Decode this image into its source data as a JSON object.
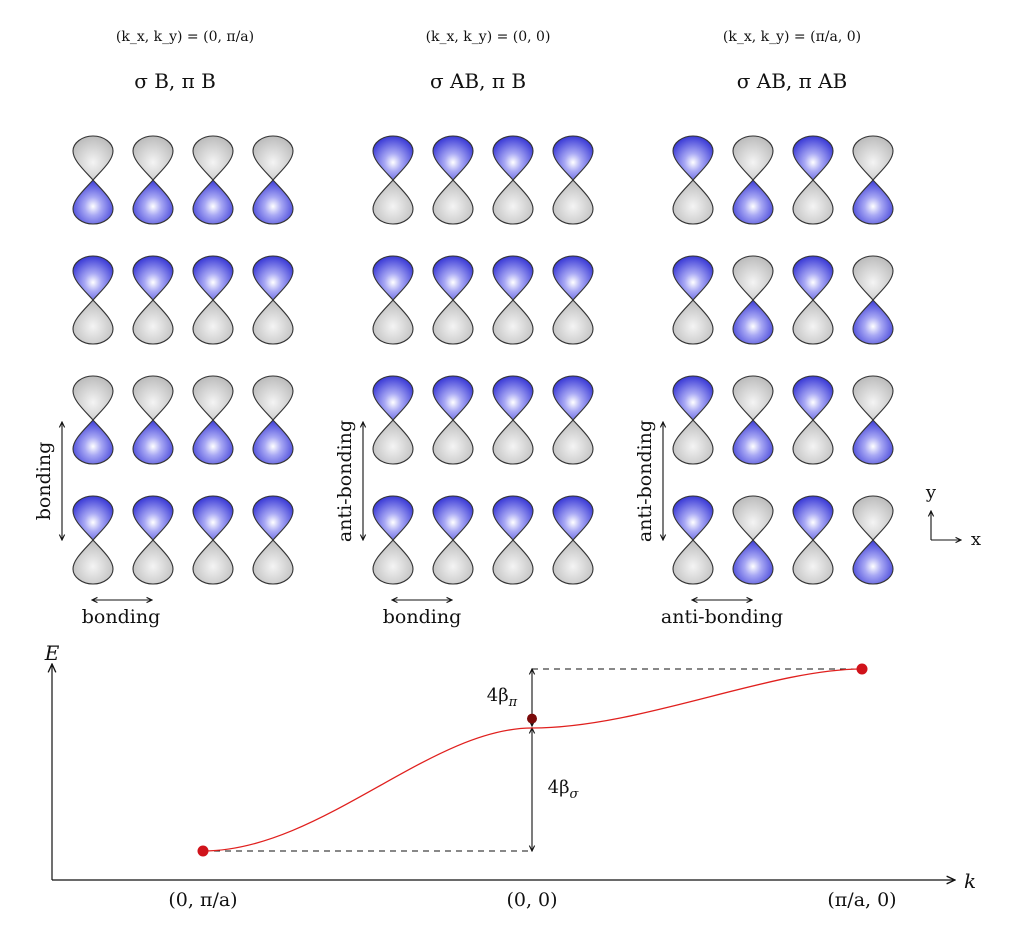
{
  "panels": [
    {
      "k_label": "(k_x, k_y) = (0, π/a)",
      "bonding_label": "σ B, π B",
      "vertical_label": "bonding",
      "horizontal_label": "bonding",
      "rows": [
        [
          "down",
          "down",
          "down",
          "down"
        ],
        [
          "up",
          "up",
          "up",
          "up"
        ],
        [
          "down",
          "down",
          "down",
          "down"
        ],
        [
          "up",
          "up",
          "up",
          "up"
        ]
      ]
    },
    {
      "k_label": "(k_x, k_y) = (0, 0)",
      "bonding_label": "σ AB, π B",
      "vertical_label": "anti-bonding",
      "horizontal_label": "bonding",
      "rows": [
        [
          "up",
          "up",
          "up",
          "up"
        ],
        [
          "up",
          "up",
          "up",
          "up"
        ],
        [
          "up",
          "up",
          "up",
          "up"
        ],
        [
          "up",
          "up",
          "up",
          "up"
        ]
      ]
    },
    {
      "k_label": "(k_x, k_y) = (π/a, 0)",
      "bonding_label": "σ AB, π AB",
      "vertical_label": "anti-bonding",
      "horizontal_label": "anti-bonding",
      "rows": [
        [
          "up",
          "down",
          "up",
          "down"
        ],
        [
          "up",
          "down",
          "up",
          "down"
        ],
        [
          "up",
          "down",
          "up",
          "down"
        ],
        [
          "up",
          "down",
          "up",
          "down"
        ]
      ]
    }
  ],
  "axes_indicator": {
    "y": "y",
    "x": "x"
  },
  "energy_plot": {
    "y_axis_label": "E",
    "x_axis_label": "k",
    "points": [
      {
        "label": "(0, π/a)",
        "energy": 0
      },
      {
        "label": "(0, 0)",
        "energy": 4
      },
      {
        "label": "(π/a, 0)",
        "energy": 5.5
      }
    ],
    "gap_sigma_label": "4β",
    "gap_sigma_sub": "σ",
    "gap_pi_label": "4β",
    "gap_pi_sub": "π"
  },
  "colors": {
    "lobe_blue": "#4b4bdc",
    "lobe_gray": "#d0d0d0",
    "curve": "#e0201e",
    "point": "#d0131b"
  }
}
